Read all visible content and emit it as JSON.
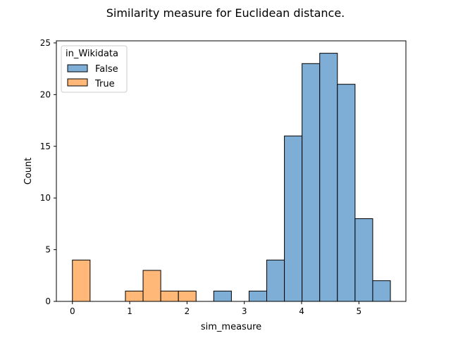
{
  "chart_data": {
    "type": "bar",
    "title": "Similarity measure for Euclidean distance.",
    "xlabel": "sim_measure",
    "ylabel": "Count",
    "xlim": [
      -0.28,
      5.82
    ],
    "ylim": [
      0,
      25.2
    ],
    "xticks": [
      0,
      1,
      2,
      3,
      4,
      5
    ],
    "yticks": [
      0,
      5,
      10,
      15,
      20,
      25
    ],
    "grid": false,
    "legend": {
      "title": "in_Wikidata",
      "placement": "top-left"
    },
    "bin_edges": [
      0.0,
      0.3083,
      0.6166,
      0.9249,
      1.2332,
      1.5415,
      1.8498,
      2.1581,
      2.4664,
      2.7747,
      3.083,
      3.3913,
      3.6996,
      4.0079,
      4.3162,
      4.6245,
      4.9328,
      5.2411,
      5.5494
    ],
    "series": [
      {
        "name": "False",
        "color": "#7eadd6",
        "values": [
          0,
          0,
          0,
          0,
          0,
          0,
          0,
          0,
          1,
          0,
          1,
          4,
          16,
          23,
          24,
          21,
          8,
          2
        ]
      },
      {
        "name": "True",
        "color": "#ffb877",
        "values": [
          4,
          0,
          0,
          1,
          3,
          1,
          1,
          0,
          0,
          0,
          0,
          0,
          0,
          0,
          0,
          0,
          0,
          0
        ]
      }
    ]
  }
}
